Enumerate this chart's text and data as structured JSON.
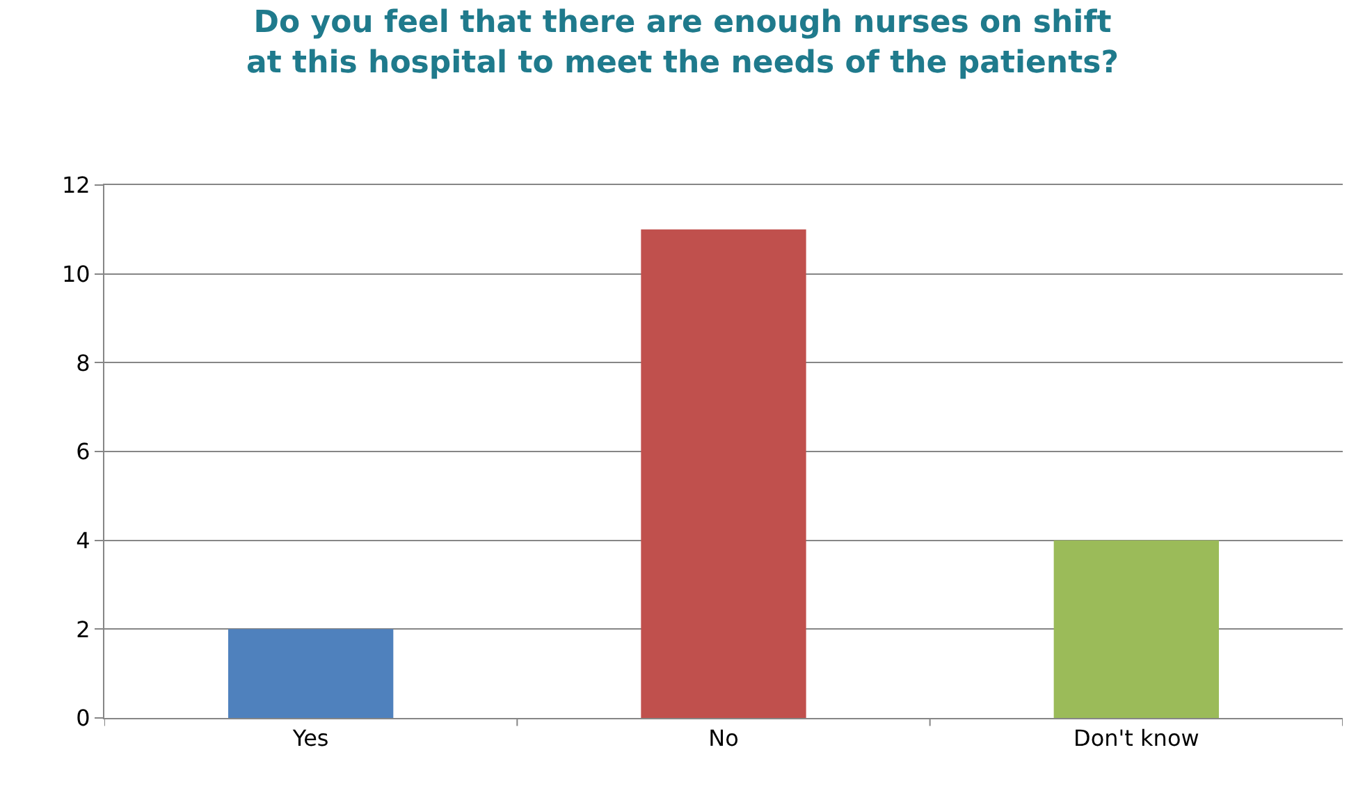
{
  "chart_data": {
    "type": "bar",
    "title": "Do you feel that there are enough nurses on shift\nat this hospital to meet the needs of the patients?",
    "categories": [
      "Yes",
      "No",
      "Don't know"
    ],
    "values": [
      2,
      11,
      4
    ],
    "colors": [
      "#4f81bd",
      "#c0504d",
      "#9bbb59"
    ],
    "ylim": [
      0,
      12
    ],
    "yticks": [
      0,
      2,
      4,
      6,
      8,
      10,
      12
    ],
    "grid": "y"
  }
}
